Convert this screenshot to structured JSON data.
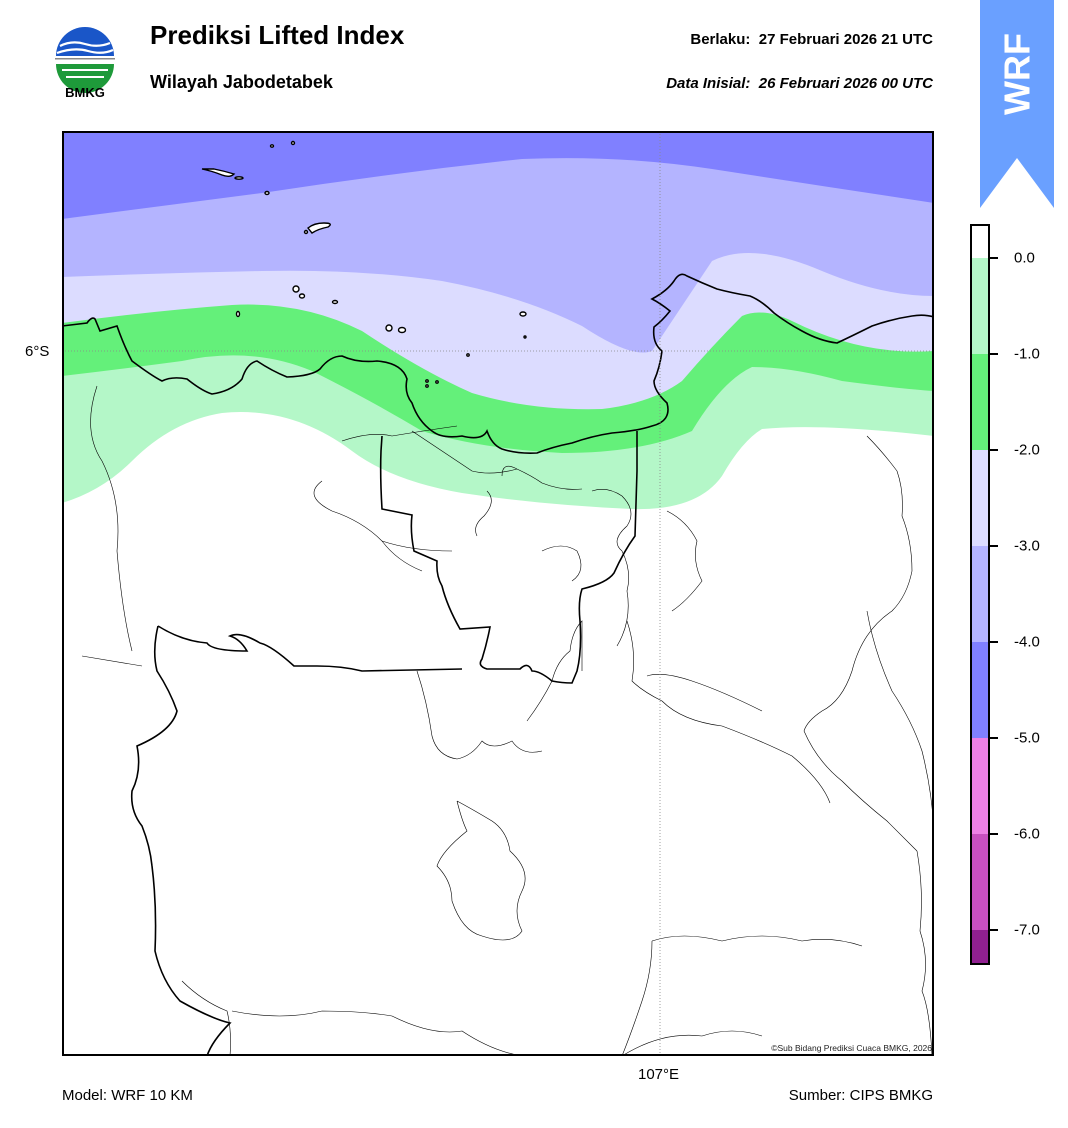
{
  "header": {
    "title": "Prediksi Lifted Index",
    "subtitle": "Wilayah Jabodetabek",
    "valid_label": "Berlaku:",
    "valid_time": "27 Februari 2026 21 UTC",
    "init_label": "Data Inisial:",
    "init_time": "26 Februari 2026 00 UTC"
  },
  "logo": {
    "text": "BMKG",
    "icon": "bmkg-logo-icon"
  },
  "badge": {
    "text": "WRF",
    "icon": "up-arrow-icon",
    "color": "#6aa0ff"
  },
  "map": {
    "lat_label": "6°S",
    "lon_label": "107°E",
    "copyright": "©Sub Bidang Prediksi Cuaca BMKG, 2026"
  },
  "footer": {
    "model": "Model: WRF 10 KM",
    "source": "Sumber: CIPS BMKG"
  },
  "colorbar": {
    "ticks": [
      "0.0",
      "-1.0",
      "-2.0",
      "-3.0",
      "-4.0",
      "-5.0",
      "-6.0",
      "-7.0"
    ],
    "bands": [
      {
        "range": "> 0.0",
        "color": "#ffffff"
      },
      {
        "range": "0.0 to -1.0",
        "color": "#b4f7c8"
      },
      {
        "range": "-1.0 to -2.0",
        "color": "#64f07a"
      },
      {
        "range": "-2.0 to -3.0",
        "color": "#dcdcff"
      },
      {
        "range": "-3.0 to -4.0",
        "color": "#b4b4ff"
      },
      {
        "range": "-4.0 to -5.0",
        "color": "#8080ff"
      },
      {
        "range": "-5.0 to -6.0",
        "color": "#ee80e6"
      },
      {
        "range": "-6.0 to -7.0",
        "color": "#c850c0"
      },
      {
        "range": "< -7.0",
        "color": "#902090"
      }
    ]
  }
}
